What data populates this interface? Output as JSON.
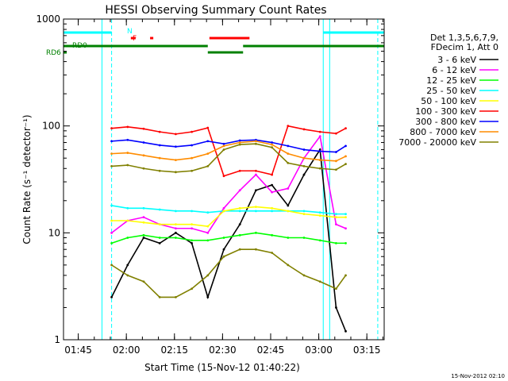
{
  "chart_data": {
    "type": "line",
    "title": "HESSI Observing Summary Count Rates",
    "xlabel": "Start Time (15-Nov-12 01:40:22)",
    "ylabel": "Count Rate (s⁻¹ detector⁻¹)",
    "yscale": "log",
    "ylim": [
      1,
      1000
    ],
    "xlim_minutes_from_start": [
      0,
      100
    ],
    "x_ticks": [
      "01:45",
      "02:00",
      "02:15",
      "02:30",
      "02:45",
      "03:00",
      "03:15"
    ],
    "y_ticks": [
      "1",
      "10",
      "100",
      "1000"
    ],
    "timestamp": "15-Nov-2012 02:10",
    "legend": {
      "placement": "right",
      "header_lines": [
        "Det 1,3,5,6,7,9,",
        "FDecim 1, Att 0"
      ]
    },
    "flag_labels": [
      "N",
      "F",
      "RD0",
      "RD6"
    ],
    "x_minutes": [
      15,
      20,
      25,
      30,
      35,
      40,
      45,
      50,
      55,
      60,
      65,
      70,
      75,
      80,
      85,
      88
    ],
    "series": [
      {
        "name": "3 - 6 keV",
        "color": "#000000",
        "values": [
          2.5,
          5,
          9,
          8,
          10,
          8,
          2.5,
          7,
          12,
          25,
          28,
          18,
          35,
          60,
          2,
          1.2
        ]
      },
      {
        "name": "6 - 12 keV",
        "color": "#ff00ff",
        "values": [
          10,
          13,
          14,
          12,
          11,
          11,
          10,
          17,
          25,
          35,
          24,
          26,
          50,
          80,
          12,
          11
        ]
      },
      {
        "name": "12 - 25 keV",
        "color": "#00ff00",
        "values": [
          8,
          9,
          9.5,
          9,
          9,
          8.5,
          8.5,
          9,
          9.5,
          10,
          9.5,
          9,
          9,
          8.5,
          8,
          8
        ]
      },
      {
        "name": "25 - 50 keV",
        "color": "#00ffff",
        "values": [
          18,
          17,
          17,
          16.5,
          16,
          16,
          15.5,
          16,
          16,
          16,
          16,
          16,
          16,
          15.5,
          15,
          15
        ]
      },
      {
        "name": "50 - 100 keV",
        "color": "#ffff00",
        "values": [
          13,
          13,
          12.5,
          12,
          12,
          12,
          11.5,
          16,
          17,
          17.5,
          17,
          16,
          15,
          14.5,
          14,
          14
        ]
      },
      {
        "name": "100 - 300 keV",
        "color": "#ff0000",
        "values": [
          95,
          98,
          94,
          88,
          84,
          88,
          96,
          34,
          38,
          38,
          35,
          100,
          93,
          88,
          85,
          95
        ]
      },
      {
        "name": "300 - 800 keV",
        "color": "#0000ff",
        "values": [
          72,
          74,
          70,
          66,
          64,
          66,
          72,
          68,
          73,
          74,
          70,
          65,
          60,
          58,
          57,
          65
        ]
      },
      {
        "name": "800 - 7000 keV",
        "color": "#ff8c00",
        "values": [
          55,
          56,
          53,
          50,
          48,
          50,
          55,
          65,
          70,
          72,
          67,
          55,
          50,
          48,
          47,
          52
        ]
      },
      {
        "name": "7000 - 20000 keV",
        "color": "#808000",
        "values": [
          42,
          43,
          40,
          38,
          37,
          38,
          42,
          60,
          67,
          68,
          63,
          45,
          42,
          40,
          39,
          44
        ]
      },
      {
        "name": "",
        "color": "#808000",
        "values": [
          5,
          4,
          3.5,
          2.5,
          2.5,
          3,
          4,
          6,
          7,
          7,
          6.5,
          5,
          4,
          3.5,
          3,
          4
        ]
      }
    ],
    "flags": [
      {
        "label": "N",
        "color": "#00ffff",
        "segments": [
          [
            0,
            15
          ],
          [
            81,
            100
          ]
        ]
      },
      {
        "label": "F",
        "color": "#ff0000",
        "segments": [
          [
            21,
            22.5
          ],
          [
            27,
            28
          ],
          [
            45.5,
            58
          ]
        ]
      },
      {
        "label": "RD0",
        "color": "#008000",
        "segments": [
          [
            0,
            45
          ],
          [
            56,
            100
          ]
        ]
      },
      {
        "label": "RD6",
        "color": "#008000",
        "segments": [
          [
            0,
            1
          ],
          [
            45,
            56
          ]
        ]
      }
    ],
    "vlines_solid": [
      0,
      12,
      81,
      83
    ],
    "vlines_dashed": [
      15,
      98
    ]
  }
}
